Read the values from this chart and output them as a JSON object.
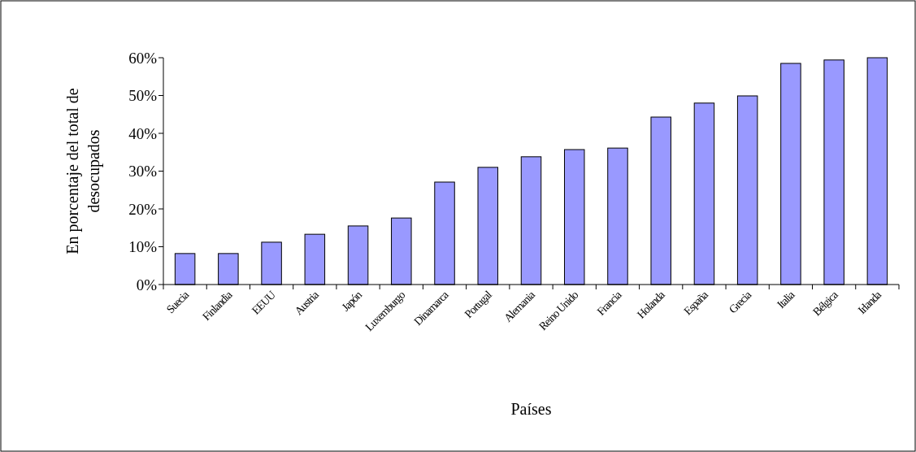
{
  "chart_data": {
    "type": "bar",
    "xlabel": "Países",
    "ylabel": "En porcentaje del total de desocupados",
    "categories": [
      "Suecia",
      "Finlandia",
      "EEUU",
      "Austria",
      "Japón",
      "Luxemburgo",
      "Dinamarca",
      "Portugal",
      "Alemania",
      "Reino Unido",
      "Francia",
      "Holanda",
      "España",
      "Grecia",
      "Italia",
      "Bélgica",
      "Irlanda"
    ],
    "values": [
      8.2,
      8.2,
      11.2,
      13.3,
      15.5,
      17.6,
      27.1,
      31,
      33.8,
      35.7,
      36.1,
      44.3,
      48,
      49.9,
      58.5,
      59.4,
      60
    ],
    "color": "#9999ff",
    "ylim": [
      0,
      60
    ],
    "yticks": [
      {
        "value": 0,
        "label": "0%"
      },
      {
        "value": 10,
        "label": "10%"
      },
      {
        "value": 20,
        "label": "20%"
      },
      {
        "value": 30,
        "label": "30%"
      },
      {
        "value": 40,
        "label": "40%"
      },
      {
        "value": 50,
        "label": "50%"
      },
      {
        "value": 60,
        "label": "60%"
      }
    ],
    "grid": false
  }
}
